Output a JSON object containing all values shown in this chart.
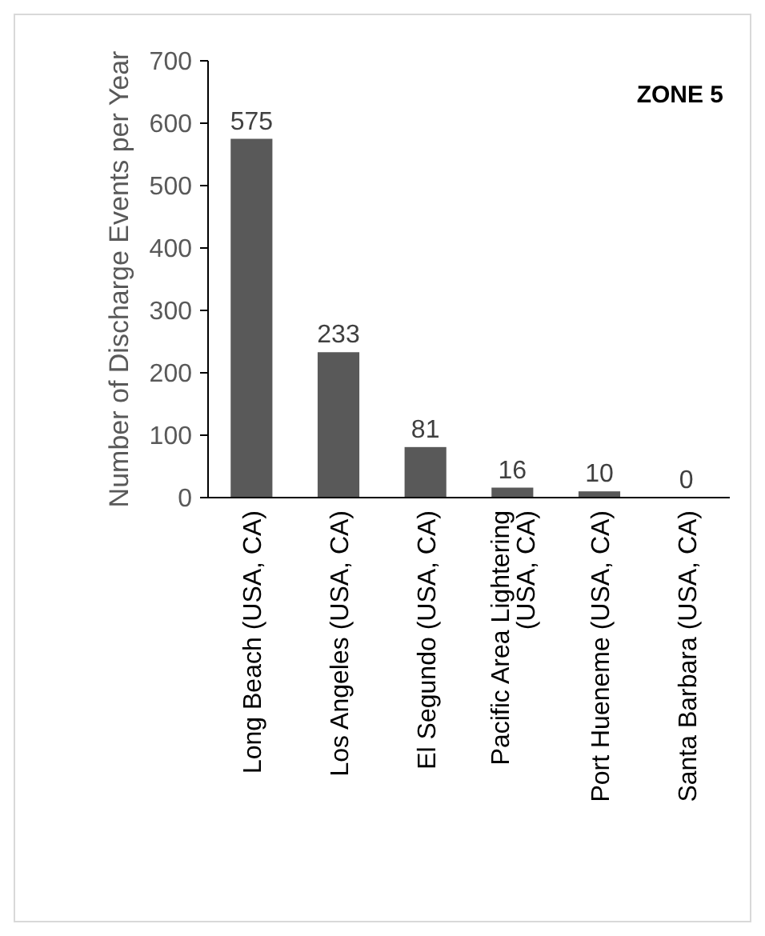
{
  "chart_data": {
    "type": "bar",
    "ylabel": "Number of Discharge Events per Year",
    "annotations": [
      "ZONE 5"
    ],
    "categories": [
      "Long Beach (USA, CA)",
      "Los Angeles (USA, CA)",
      "El Segundo (USA, CA)",
      "Pacific Area Lightering (USA, CA)",
      "Port Hueneme (USA, CA)",
      "Santa Barbara (USA, CA)"
    ],
    "values": [
      575,
      233,
      81,
      16,
      10,
      0
    ],
    "color": "#595959",
    "ylim": [
      0,
      700
    ],
    "yticks": [
      0,
      100,
      200,
      300,
      400,
      500,
      600,
      700
    ],
    "data_labels": true,
    "grid": false
  }
}
